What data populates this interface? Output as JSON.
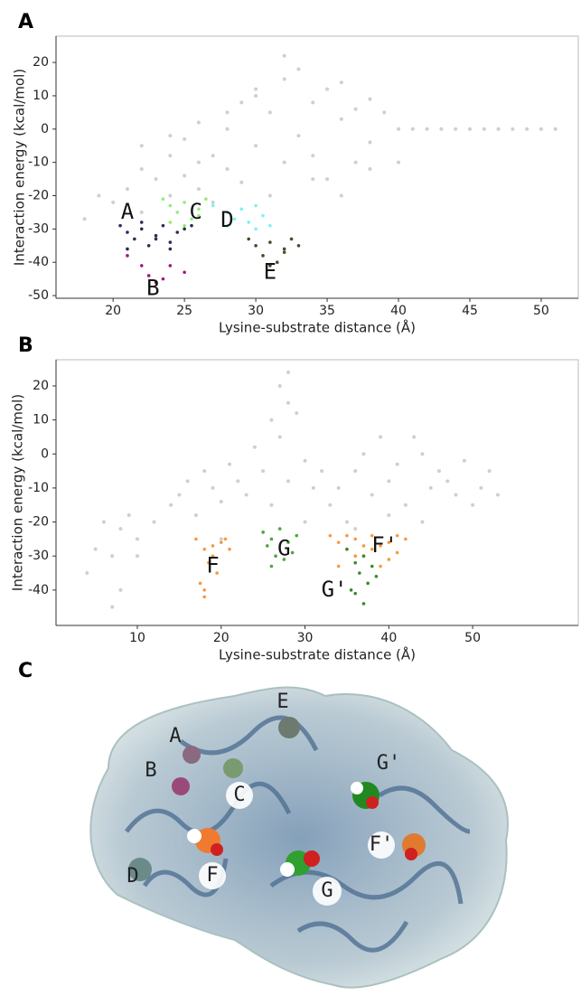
{
  "panels": [
    "A",
    "B",
    "C"
  ],
  "chart_data": [
    {
      "type": "scatter",
      "xlabel": "Lysine-substrate distance (Å)",
      "ylabel": "Interaction energy (kcal/mol)",
      "xlim": [
        16,
        52.6
      ],
      "ylim": [
        -50.8,
        27.9
      ],
      "xticks": [
        20,
        25,
        30,
        35,
        40,
        45,
        50
      ],
      "yticks": [
        -50,
        -40,
        -30,
        -20,
        -10,
        0,
        10,
        20
      ],
      "annotations": [
        "A",
        "B",
        "C",
        "D",
        "E"
      ],
      "series": [
        {
          "color": "#cfcfcf",
          "x": [
            18,
            19,
            20,
            21,
            22,
            22,
            23,
            24,
            24,
            25,
            25,
            26,
            26,
            27,
            27,
            28,
            28,
            29,
            29,
            30,
            30,
            31,
            31,
            32,
            32,
            33,
            33,
            34,
            34,
            35,
            35,
            36,
            36,
            37,
            37,
            38,
            38,
            39,
            40,
            41,
            42,
            43,
            44,
            45,
            46,
            47,
            48,
            49,
            50,
            51,
            22,
            24,
            26,
            28,
            30,
            32,
            34,
            36,
            38,
            40
          ],
          "y": [
            -27,
            -20,
            -22,
            -18,
            -25,
            -12,
            -15,
            -8,
            -20,
            -3,
            -14,
            -18,
            2,
            -8,
            -22,
            0,
            -12,
            8,
            -16,
            -5,
            10,
            -20,
            5,
            -10,
            15,
            -2,
            18,
            8,
            -8,
            12,
            -15,
            3,
            14,
            6,
            -10,
            9,
            -4,
            5,
            0,
            0,
            0,
            0,
            0,
            0,
            0,
            0,
            0,
            0,
            0,
            0,
            -5,
            -2,
            -10,
            5,
            12,
            22,
            -15,
            -20,
            -12,
            -10
          ]
        },
        {
          "color": "#2b2d55",
          "x": [
            20.5,
            21,
            21.5,
            22,
            22.5,
            23,
            23.5,
            24,
            24.5,
            25,
            21,
            22,
            23,
            24,
            25.5
          ],
          "y": [
            -29,
            -31,
            -33,
            -30,
            -35,
            -32,
            -29,
            -34,
            -31,
            -30,
            -36,
            -28,
            -33,
            -36,
            -29
          ]
        },
        {
          "color": "#a0167e",
          "x": [
            21,
            22,
            22.5,
            23,
            23.5,
            24,
            25
          ],
          "y": [
            -38,
            -41,
            -44,
            -46,
            -45,
            -41,
            -43
          ]
        },
        {
          "color": "#90ee78",
          "x": [
            23.5,
            24,
            24.5,
            25,
            25.5,
            26,
            26.5,
            24,
            25,
            26
          ],
          "y": [
            -21,
            -23,
            -25,
            -22,
            -27,
            -24,
            -21,
            -28,
            -29,
            -26
          ]
        },
        {
          "color": "#7ff0f0",
          "x": [
            27,
            28,
            28.5,
            29,
            29.5,
            30,
            30.5,
            31,
            28,
            30
          ],
          "y": [
            -23,
            -25,
            -27,
            -24,
            -28,
            -23,
            -26,
            -29,
            -29,
            -30
          ]
        },
        {
          "color": "#4a4a2a",
          "x": [
            29.5,
            30,
            30.5,
            31,
            31.5,
            32,
            32.5,
            33,
            31,
            32
          ],
          "y": [
            -33,
            -35,
            -38,
            -34,
            -40,
            -36,
            -33,
            -35,
            -41,
            -37
          ]
        }
      ]
    },
    {
      "type": "scatter",
      "xlabel": "Lysine-substrate distance (Å)",
      "ylabel": "Interaction energy (kcal/mol)",
      "xlim": [
        0.3,
        62.6
      ],
      "ylim": [
        -50.4,
        27.7
      ],
      "xticks": [
        10,
        20,
        30,
        40,
        50
      ],
      "yticks": [
        -40,
        -30,
        -20,
        -10,
        0,
        10,
        20
      ],
      "annotations": [
        "F",
        "G",
        "F'",
        "G'"
      ],
      "series": [
        {
          "color": "#cfcfcf",
          "x": [
            4,
            5,
            6,
            7,
            8,
            8,
            9,
            10,
            12,
            14,
            15,
            16,
            17,
            18,
            19,
            20,
            21,
            22,
            23,
            24,
            25,
            26,
            26,
            27,
            27,
            28,
            28,
            29,
            30,
            31,
            32,
            33,
            34,
            35,
            36,
            37,
            38,
            39,
            40,
            41,
            42,
            43,
            44,
            45,
            46,
            47,
            48,
            49,
            50,
            51,
            52,
            53,
            36,
            40,
            44,
            28,
            20,
            10,
            7,
            30
          ],
          "y": [
            -35,
            -28,
            -20,
            -30,
            -40,
            -22,
            -18,
            -25,
            -20,
            -15,
            -12,
            -8,
            -18,
            -5,
            -10,
            -14,
            -3,
            -8,
            -12,
            2,
            -5,
            10,
            -15,
            20,
            5,
            15,
            -8,
            12,
            -2,
            -10,
            -5,
            -15,
            -10,
            -20,
            -5,
            0,
            -12,
            5,
            -8,
            -3,
            -15,
            5,
            0,
            -10,
            -5,
            -8,
            -12,
            -2,
            -15,
            -10,
            -5,
            -12,
            -22,
            -18,
            -20,
            24,
            -25,
            -30,
            -45,
            -20
          ]
        },
        {
          "color": "#f59a40",
          "x": [
            17,
            18,
            18.5,
            19,
            19.5,
            20,
            17.5,
            18,
            19,
            20.5,
            21,
            18
          ],
          "y": [
            -25,
            -28,
            -32,
            -27,
            -35,
            -26,
            -38,
            -42,
            -30,
            -25,
            -28,
            -40
          ]
        },
        {
          "color": "#4aa83a",
          "x": [
            25,
            25.5,
            26,
            26.5,
            27,
            28,
            28.5,
            29,
            26,
            27.5
          ],
          "y": [
            -23,
            -27,
            -25,
            -30,
            -22,
            -26,
            -29,
            -24,
            -33,
            -31
          ]
        },
        {
          "color": "#f59a40",
          "x": [
            33,
            34,
            35,
            36,
            37,
            38,
            39,
            40,
            41,
            42,
            34,
            36,
            38,
            40,
            35,
            37,
            39,
            41
          ],
          "y": [
            -24,
            -26,
            -28,
            -25,
            -30,
            -24,
            -27,
            -26,
            -29,
            -25,
            -33,
            -30,
            -28,
            -31,
            -24,
            -27,
            -33,
            -24
          ]
        },
        {
          "color": "#3a8a2a",
          "x": [
            35,
            36,
            36.5,
            37,
            37.5,
            38,
            36,
            37,
            38.5,
            35.5
          ],
          "y": [
            -28,
            -32,
            -35,
            -30,
            -38,
            -33,
            -41,
            -44,
            -36,
            -40
          ]
        }
      ]
    }
  ],
  "structure_labels": [
    {
      "text": "A",
      "color": "#2b2d55"
    },
    {
      "text": "B",
      "color": "#a0167e"
    },
    {
      "text": "C",
      "color": "#90ee78"
    },
    {
      "text": "D",
      "color": "#7ff0f0"
    },
    {
      "text": "E",
      "color": "#4a4a2a"
    },
    {
      "text": "F",
      "color": "#f59a40"
    },
    {
      "text": "G",
      "color": "#4aa83a"
    },
    {
      "text": "F'",
      "color": "#f59a40"
    },
    {
      "text": "G'",
      "color": "#3a8a2a"
    }
  ]
}
